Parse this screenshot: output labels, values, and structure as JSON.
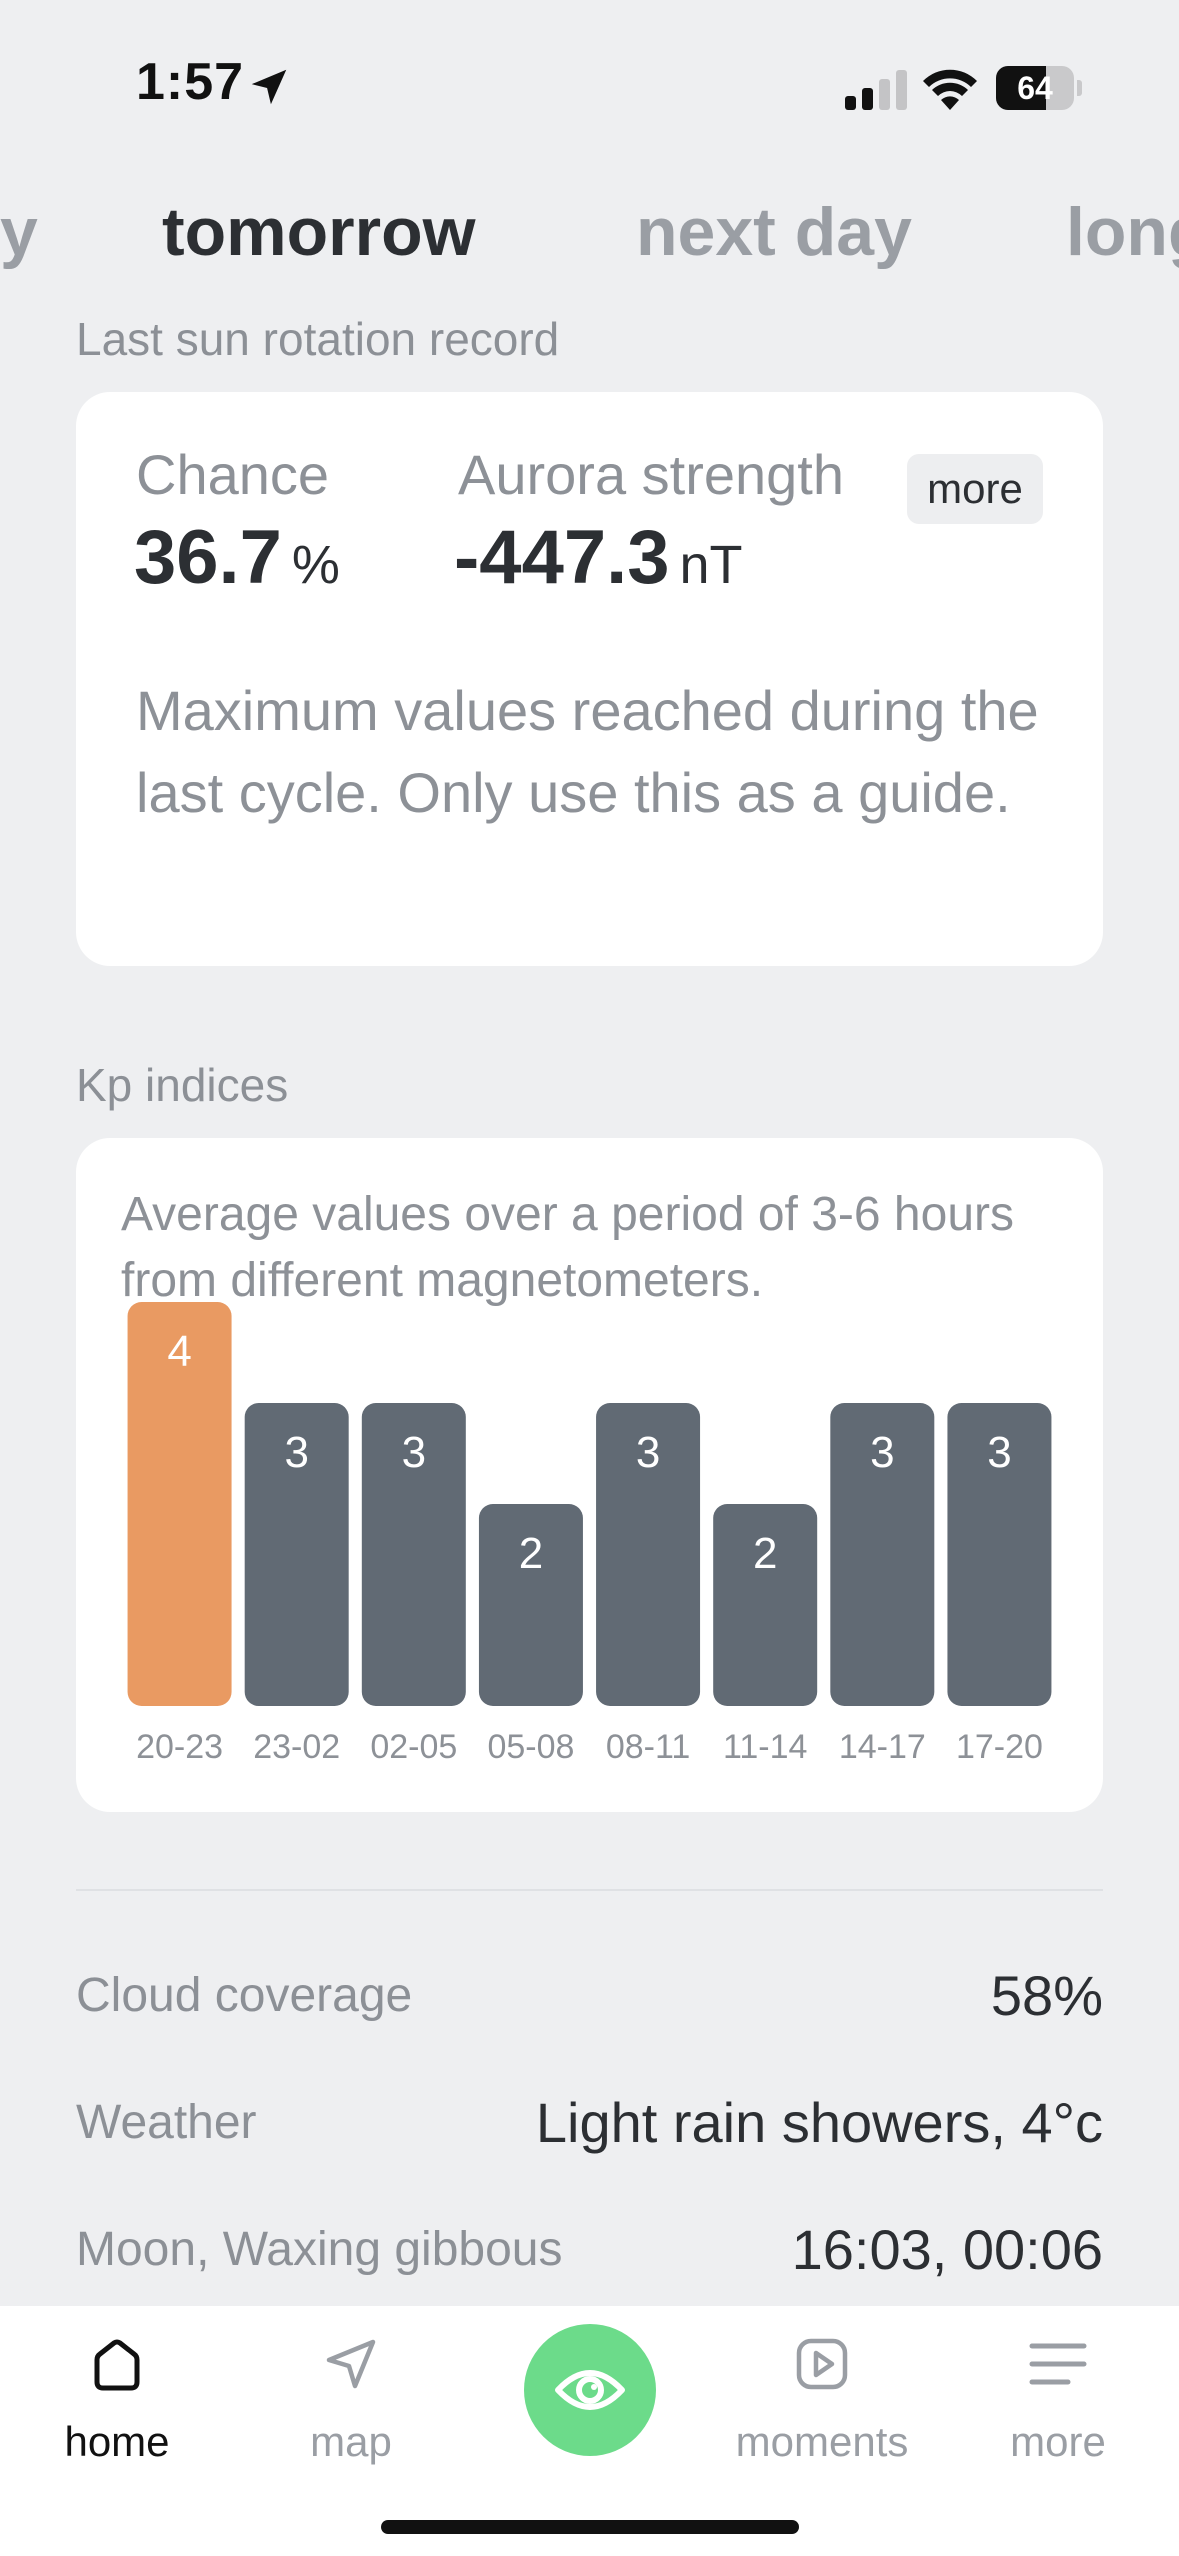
{
  "status_bar": {
    "time": "1:57",
    "battery": "64",
    "battery_fraction": 0.64
  },
  "day_tabs": [
    {
      "label": "y"
    },
    {
      "label": "tomorrow"
    },
    {
      "label": "next day"
    },
    {
      "label": "long"
    }
  ],
  "sun_rotation": {
    "section_label": "Last sun rotation record",
    "chance_label": "Chance",
    "chance_value": "36.7",
    "chance_unit": "%",
    "strength_label": "Aurora strength",
    "strength_value": "-447.3",
    "strength_unit": "nT",
    "more_label": "more",
    "description": "Maximum values reached during the last cycle. Only use this as a guide."
  },
  "kp": {
    "section_label": "Kp indices",
    "description": "Average values over a period of 3-6 hours from different magnetometers."
  },
  "chart_data": {
    "type": "bar",
    "categories": [
      "20-23",
      "23-02",
      "02-05",
      "05-08",
      "08-11",
      "11-14",
      "14-17",
      "17-20"
    ],
    "values": [
      4,
      3,
      3,
      2,
      3,
      2,
      3,
      3
    ],
    "highlight_index": 0,
    "colors": {
      "highlight": "#E99A62",
      "default": "#616A74"
    },
    "ylim": [
      0,
      4
    ]
  },
  "info": {
    "cloud_label": "Cloud coverage",
    "cloud_value": "58%",
    "weather_label": "Weather",
    "weather_value": "Light rain showers, 4°c",
    "moon_label": "Moon, Waxing gibbous",
    "moon_value": "16:03, 00:06"
  },
  "tab_bar": {
    "home": "home",
    "map": "map",
    "moments": "moments",
    "more": "more",
    "accent": "#6CDB8A"
  }
}
